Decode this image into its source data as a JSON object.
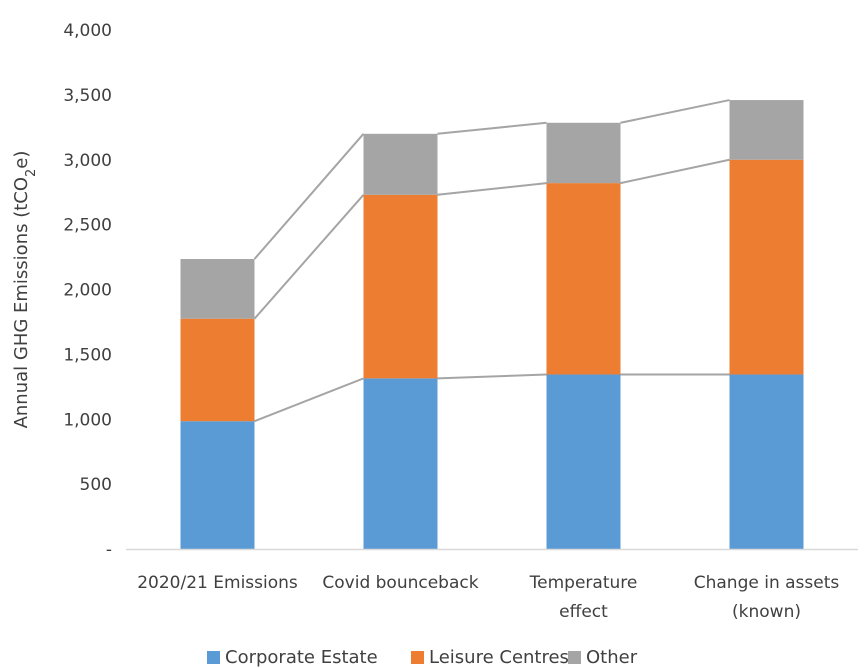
{
  "chart_data": {
    "type": "bar",
    "stacked": true,
    "categories": [
      [
        "2020/21 Emissions"
      ],
      [
        "Covid bounceback"
      ],
      [
        "Temperature",
        "effect"
      ],
      [
        "Change in assets",
        "(known)"
      ]
    ],
    "series": [
      {
        "name": "Corporate Estate",
        "color": "#5B9BD5",
        "values": [
          985,
          1315,
          1345,
          1345
        ]
      },
      {
        "name": "Leisure Centres",
        "color": "#ED7D31",
        "values": [
          790,
          1415,
          1475,
          1655
        ]
      },
      {
        "name": "Other",
        "color": "#A5A5A5",
        "values": [
          460,
          470,
          465,
          460
        ]
      }
    ],
    "ylabel": {
      "prefix": "Annual GHG Emissions (tCO",
      "sub": "2",
      "suffix": "e)"
    },
    "ylim": [
      0,
      4000
    ],
    "yticks": [
      {
        "value": 0,
        "label": "-"
      },
      {
        "value": 500,
        "label": "500"
      },
      {
        "value": 1000,
        "label": "1,000"
      },
      {
        "value": 1500,
        "label": "1,500"
      },
      {
        "value": 2000,
        "label": "2,000"
      },
      {
        "value": 2500,
        "label": "2,500"
      },
      {
        "value": 3000,
        "label": "3,000"
      },
      {
        "value": 3500,
        "label": "3,500"
      },
      {
        "value": 4000,
        "label": "4,000"
      }
    ],
    "grid": false,
    "connector_lines": true,
    "connector_color": "#A5A5A5",
    "legend_position": "bottom"
  }
}
